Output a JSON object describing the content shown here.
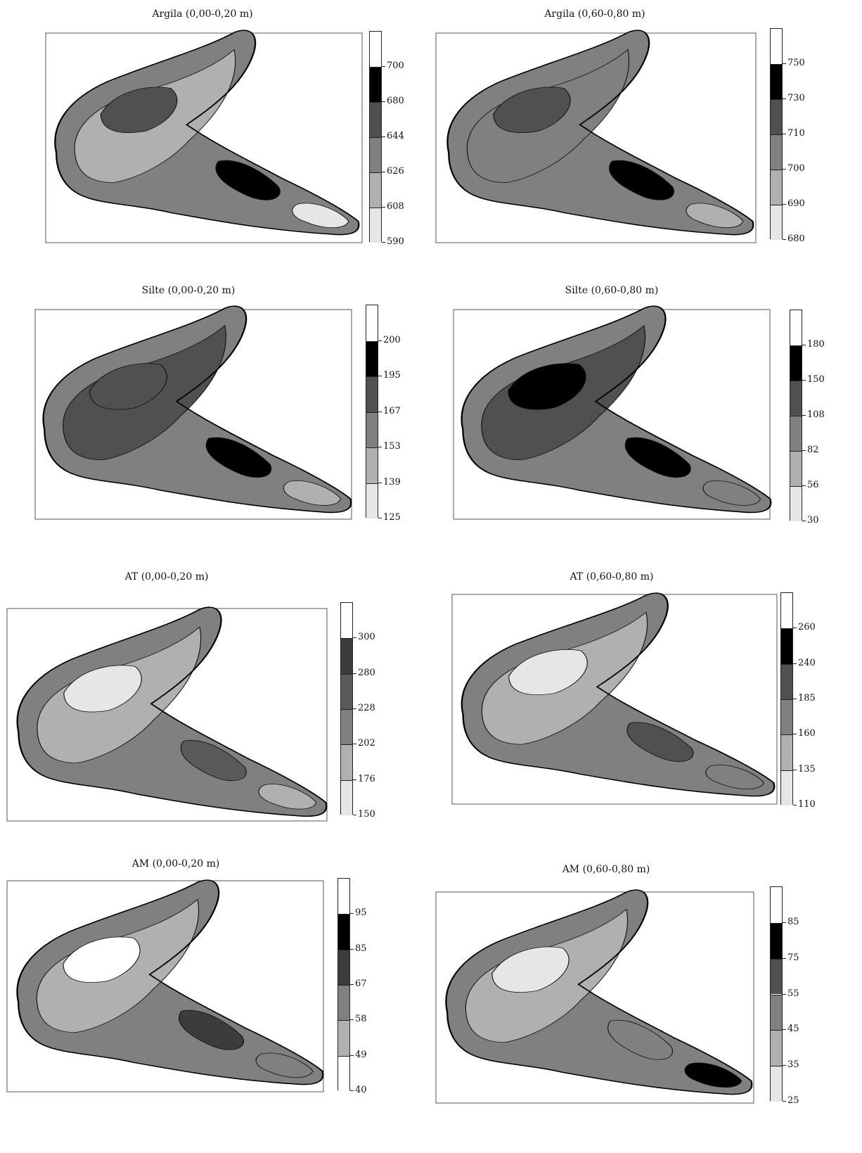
{
  "figure": {
    "panels": [
      {
        "id": "argila-0-20",
        "title": "Argila (0,00-0,20 m)",
        "legend": [
          "700",
          "680",
          "644",
          "626",
          "608",
          "590"
        ],
        "colors": [
          "#ffffff",
          "#000000",
          "#505050",
          "#808080",
          "#b0b0b0",
          "#e6e6e6"
        ],
        "regions": [
          {
            "level": 4,
            "cls": "a"
          },
          {
            "level": 2,
            "cls": "b"
          },
          {
            "level": 1,
            "cls": "c"
          },
          {
            "level": 5,
            "cls": "d"
          }
        ]
      },
      {
        "id": "argila-60-80",
        "title": "Argila (0,60-0,80 m)",
        "legend": [
          "750",
          "730",
          "710",
          "700",
          "690",
          "680"
        ],
        "colors": [
          "#ffffff",
          "#000000",
          "#505050",
          "#808080",
          "#b0b0b0",
          "#e6e6e6"
        ],
        "regions": [
          {
            "level": 3,
            "cls": "a"
          },
          {
            "level": 2,
            "cls": "b"
          },
          {
            "level": 1,
            "cls": "c"
          },
          {
            "level": 4,
            "cls": "d"
          }
        ]
      },
      {
        "id": "silte-0-20",
        "title": "Silte (0,00-0,20 m)",
        "legend": [
          "200",
          "195",
          "167",
          "153",
          "139",
          "125"
        ],
        "colors": [
          "#ffffff",
          "#000000",
          "#505050",
          "#808080",
          "#b0b0b0",
          "#e6e6e6"
        ],
        "regions": [
          {
            "level": 2,
            "cls": "a"
          },
          {
            "level": 2,
            "cls": "b"
          },
          {
            "level": 1,
            "cls": "c"
          },
          {
            "level": 4,
            "cls": "d"
          }
        ]
      },
      {
        "id": "silte-60-80",
        "title": "Silte (0,60-0,80 m)",
        "legend": [
          "180",
          "150",
          "108",
          "82",
          "56",
          "30"
        ],
        "colors": [
          "#ffffff",
          "#000000",
          "#505050",
          "#808080",
          "#b0b0b0",
          "#e6e6e6"
        ],
        "regions": [
          {
            "level": 2,
            "cls": "a"
          },
          {
            "level": 1,
            "cls": "b"
          },
          {
            "level": 1,
            "cls": "c"
          },
          {
            "level": 3,
            "cls": "d"
          }
        ]
      },
      {
        "id": "at-0-20",
        "title": "AT (0,00-0,20 m)",
        "legend": [
          "300",
          "280",
          "228",
          "202",
          "176",
          "150"
        ],
        "colors": [
          "#ffffff",
          "#3c3c3c",
          "#5a5a5a",
          "#808080",
          "#b0b0b0",
          "#e6e6e6"
        ],
        "regions": [
          {
            "level": 4,
            "cls": "a"
          },
          {
            "level": 5,
            "cls": "b"
          },
          {
            "level": 2,
            "cls": "c"
          },
          {
            "level": 4,
            "cls": "d"
          }
        ]
      },
      {
        "id": "at-60-80",
        "title": "AT (0,60-0,80 m)",
        "legend": [
          "260",
          "240",
          "185",
          "160",
          "135",
          "110"
        ],
        "colors": [
          "#ffffff",
          "#000000",
          "#505050",
          "#808080",
          "#b0b0b0",
          "#e6e6e6"
        ],
        "regions": [
          {
            "level": 4,
            "cls": "a"
          },
          {
            "level": 5,
            "cls": "b"
          },
          {
            "level": 2,
            "cls": "c"
          },
          {
            "level": 3,
            "cls": "d"
          }
        ]
      },
      {
        "id": "am-0-20",
        "title": "AM (0,00-0,20 m)",
        "legend": [
          "95",
          "85",
          "67",
          "58",
          "49",
          "40"
        ],
        "colors": [
          "#ffffff",
          "#000000",
          "#3c3c3c",
          "#808080",
          "#b0b0b0",
          "#ffffff"
        ],
        "regions": [
          {
            "level": 4,
            "cls": "a"
          },
          {
            "level": 0,
            "cls": "b"
          },
          {
            "level": 2,
            "cls": "c"
          },
          {
            "level": 3,
            "cls": "d"
          }
        ]
      },
      {
        "id": "am-60-80",
        "title": "AM (0,60-0,80 m)",
        "legend": [
          "85",
          "75",
          "55",
          "45",
          "35",
          "25"
        ],
        "colors": [
          "#ffffff",
          "#000000",
          "#505050",
          "#808080",
          "#b0b0b0",
          "#e6e6e6"
        ],
        "regions": [
          {
            "level": 4,
            "cls": "a"
          },
          {
            "level": 5,
            "cls": "b"
          },
          {
            "level": 3,
            "cls": "c"
          },
          {
            "level": 1,
            "cls": "d"
          }
        ]
      }
    ]
  }
}
